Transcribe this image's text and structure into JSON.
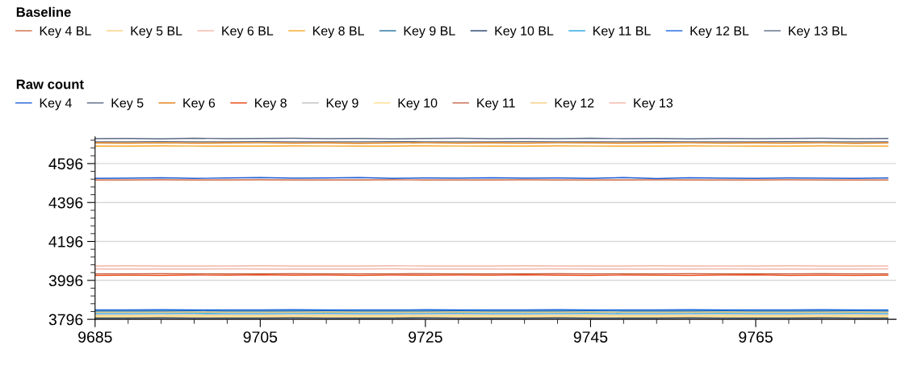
{
  "chart_data": {
    "type": "line",
    "legend_title": [
      "Baseline",
      "Raw count"
    ],
    "legend": "top",
    "grid": "y",
    "marker": "none",
    "line_style": "solid",
    "x": [
      9685,
      9689,
      9693,
      9697,
      9701,
      9705,
      9709,
      9713,
      9717,
      9721,
      9725,
      9729,
      9733,
      9737,
      9741,
      9745,
      9749,
      9753,
      9757,
      9761,
      9765,
      9769,
      9773,
      9777,
      9781
    ],
    "xlim": [
      9685,
      9782
    ],
    "xticks": [
      9685,
      9705,
      9725,
      9745,
      9765
    ],
    "ylim": [
      3796,
      4733
    ],
    "yticks": [
      3796,
      3996,
      4196,
      4396,
      4596
    ],
    "series": [
      {
        "name": "Key 4 BL",
        "color": "#d0693f",
        "values": [
          4512,
          4512,
          4513,
          4512,
          4512,
          4513,
          4512,
          4512,
          4512,
          4513,
          4512,
          4512,
          4512,
          4513,
          4512,
          4512,
          4512,
          4513,
          4512,
          4512,
          4512,
          4513,
          4512,
          4512,
          4512
        ]
      },
      {
        "name": "Key 5 BL",
        "color": "#f7d07a",
        "values": [
          3808,
          3808,
          3808,
          3809,
          3808,
          3808,
          3808,
          3809,
          3808,
          3808,
          3808,
          3809,
          3808,
          3808,
          3808,
          3809,
          3808,
          3808,
          3808,
          3809,
          3808,
          3808,
          3808,
          3809,
          3808
        ]
      },
      {
        "name": "Key 6 BL",
        "color": "#f2b5a8",
        "values": [
          4054,
          4054,
          4054,
          4054,
          4055,
          4054,
          4054,
          4054,
          4054,
          4055,
          4054,
          4054,
          4054,
          4054,
          4055,
          4054,
          4054,
          4054,
          4054,
          4055,
          4054,
          4054,
          4054,
          4054,
          4055
        ]
      },
      {
        "name": "Key 8 BL",
        "color": "#f5a623",
        "values": [
          4686,
          4686,
          4687,
          4686,
          4686,
          4686,
          4687,
          4686,
          4686,
          4686,
          4687,
          4686,
          4686,
          4686,
          4687,
          4686,
          4686,
          4686,
          4687,
          4686,
          4686,
          4686,
          4687,
          4686,
          4686
        ]
      },
      {
        "name": "Key 9 BL",
        "color": "#1f6fa0",
        "values": [
          3838,
          3838,
          3838,
          3839,
          3838,
          3838,
          3838,
          3839,
          3838,
          3838,
          3838,
          3839,
          3838,
          3838,
          3838,
          3839,
          3838,
          3838,
          3838,
          3839,
          3838,
          3838,
          3838,
          3839,
          3838
        ]
      },
      {
        "name": "Key 10 BL",
        "color": "#1f3a6b",
        "values": [
          3802,
          3802,
          3803,
          3802,
          3802,
          3802,
          3803,
          3802,
          3802,
          3802,
          3803,
          3802,
          3802,
          3802,
          3803,
          3802,
          3802,
          3802,
          3803,
          3802,
          3802,
          3802,
          3803,
          3802,
          3802
        ]
      },
      {
        "name": "Key 11 BL",
        "color": "#22a3e0",
        "values": [
          3826,
          3826,
          3826,
          3827,
          3826,
          3826,
          3826,
          3827,
          3826,
          3826,
          3826,
          3827,
          3826,
          3826,
          3826,
          3827,
          3826,
          3826,
          3826,
          3827,
          3826,
          3826,
          3826,
          3827,
          3826
        ]
      },
      {
        "name": "Key 12 BL",
        "color": "#1464e0",
        "values": [
          3844,
          3844,
          3845,
          3844,
          3844,
          3844,
          3845,
          3844,
          3844,
          3844,
          3845,
          3844,
          3844,
          3844,
          3845,
          3844,
          3844,
          3844,
          3845,
          3844,
          3844,
          3844,
          3845,
          3844,
          3844
        ]
      },
      {
        "name": "Key 13 BL",
        "color": "#5a6a85",
        "values": [
          4708,
          4708,
          4709,
          4708,
          4708,
          4709,
          4708,
          4708,
          4708,
          4709,
          4708,
          4708,
          4708,
          4709,
          4708,
          4708,
          4708,
          4709,
          4708,
          4708,
          4708,
          4709,
          4708,
          4708,
          4708
        ]
      },
      {
        "name": "Key 4",
        "color": "#1f5fd8",
        "values": [
          4520,
          4521,
          4523,
          4520,
          4522,
          4524,
          4521,
          4522,
          4524,
          4520,
          4522,
          4521,
          4523,
          4521,
          4522,
          4520,
          4524,
          4519,
          4523,
          4521,
          4520,
          4522,
          4521,
          4520,
          4522
        ]
      },
      {
        "name": "Key 5",
        "color": "#5a6a85",
        "values": [
          4724,
          4725,
          4723,
          4726,
          4724,
          4725,
          4726,
          4724,
          4725,
          4723,
          4725,
          4726,
          4724,
          4725,
          4724,
          4726,
          4724,
          4725,
          4723,
          4725,
          4724,
          4725,
          4726,
          4724,
          4725
        ]
      },
      {
        "name": "Key 6",
        "color": "#e07b10",
        "values": [
          4702,
          4701,
          4703,
          4701,
          4702,
          4703,
          4701,
          4702,
          4700,
          4702,
          4703,
          4701,
          4702,
          4701,
          4703,
          4702,
          4701,
          4702,
          4703,
          4701,
          4702,
          4701,
          4703,
          4700,
          4702
        ]
      },
      {
        "name": "Key 8",
        "color": "#e8420f",
        "values": [
          4022,
          4023,
          4022,
          4024,
          4023,
          4025,
          4023,
          4024,
          4022,
          4024,
          4023,
          4024,
          4023,
          4025,
          4023,
          4022,
          4024,
          4023,
          4022,
          4024,
          4025,
          4022,
          4023,
          4022,
          4023
        ]
      },
      {
        "name": "Key 9",
        "color": "#c0c0c0",
        "values": [
          3820,
          3820,
          3821,
          3820,
          3820,
          3820,
          3821,
          3820,
          3820,
          3820,
          3821,
          3820,
          3820,
          3820,
          3821,
          3820,
          3820,
          3820,
          3821,
          3820,
          3820,
          3820,
          3821,
          3820,
          3820
        ]
      },
      {
        "name": "Key 10",
        "color": "#fde08a",
        "values": [
          3814,
          3814,
          3814,
          3815,
          3814,
          3814,
          3814,
          3815,
          3814,
          3814,
          3814,
          3815,
          3814,
          3814,
          3814,
          3815,
          3814,
          3814,
          3814,
          3815,
          3814,
          3814,
          3814,
          3815,
          3814
        ]
      },
      {
        "name": "Key 11",
        "color": "#c8684a",
        "values": [
          4030,
          4030,
          4031,
          4030,
          4030,
          4030,
          4031,
          4030,
          4030,
          4030,
          4031,
          4030,
          4030,
          4030,
          4031,
          4030,
          4030,
          4030,
          4031,
          4030,
          4030,
          4030,
          4031,
          4030,
          4030
        ]
      },
      {
        "name": "Key 12",
        "color": "#f5cc80",
        "values": [
          3832,
          3832,
          3832,
          3833,
          3832,
          3832,
          3832,
          3833,
          3832,
          3832,
          3832,
          3833,
          3832,
          3832,
          3832,
          3833,
          3832,
          3832,
          3832,
          3833,
          3832,
          3832,
          3832,
          3833,
          3832
        ]
      },
      {
        "name": "Key 13",
        "color": "#f2b5a8",
        "values": [
          4070,
          4071,
          4070,
          4070,
          4070,
          4071,
          4070,
          4070,
          4070,
          4071,
          4070,
          4070,
          4070,
          4071,
          4070,
          4070,
          4070,
          4071,
          4070,
          4070,
          4070,
          4071,
          4070,
          4070,
          4070
        ]
      }
    ]
  }
}
